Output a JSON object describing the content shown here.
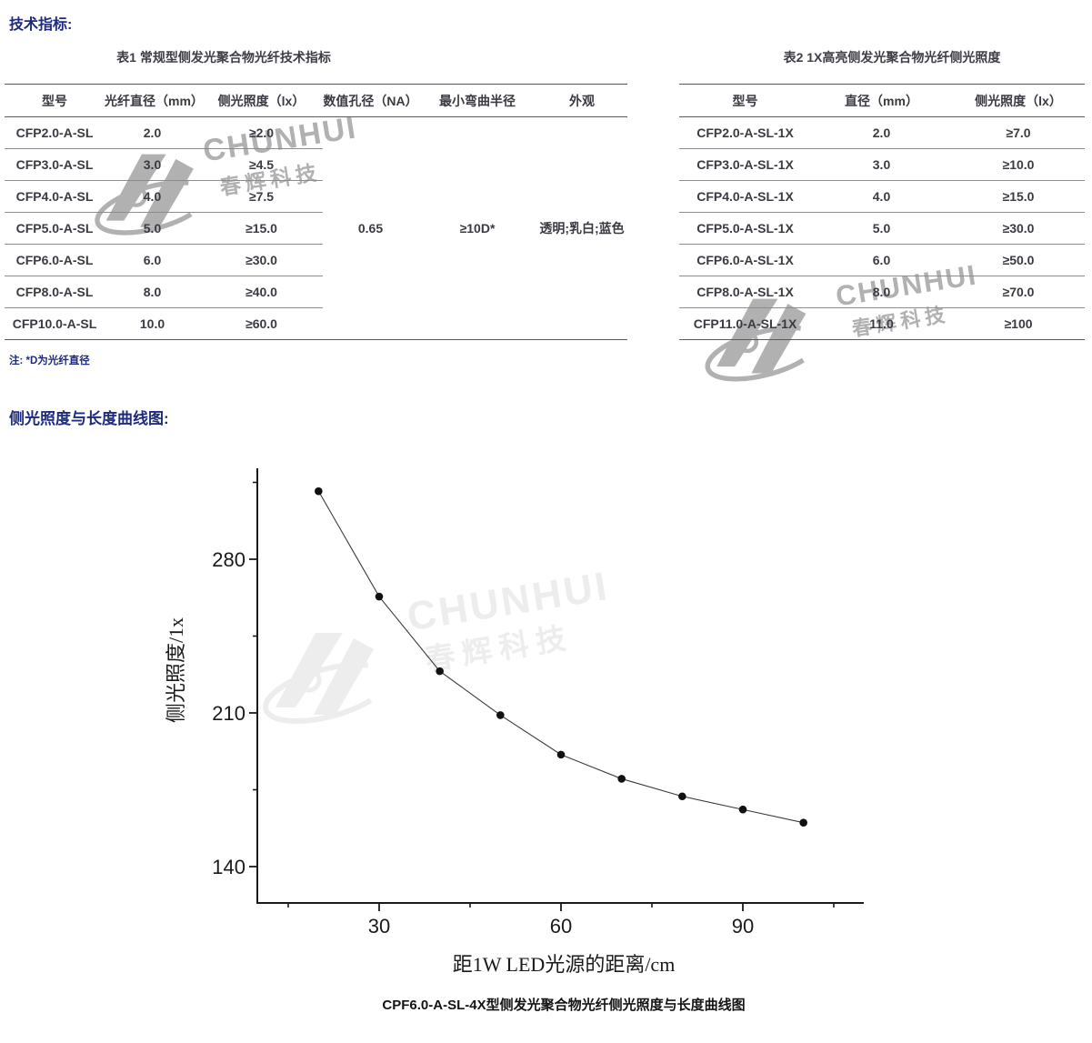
{
  "page": {
    "heading1": "技术指标:",
    "heading2": "侧光照度与长度曲线图:",
    "note": "注: *D为光纤直径",
    "caption": "CPF6.0-A-SL-4X型侧发光聚合物光纤侧光照度与长度曲线图",
    "accent_color": "#1c2b7d"
  },
  "table1": {
    "title": "表1 常规型侧发光聚合物光纤技术指标",
    "headers": [
      "型号",
      "光纤直径（mm）",
      "侧光照度（lx）",
      "数值孔径（NA）",
      "最小弯曲半径",
      "外观"
    ],
    "rows": [
      [
        "CFP2.0-A-SL",
        "2.0",
        "≥2.0"
      ],
      [
        "CFP3.0-A-SL",
        "3.0",
        "≥4.5"
      ],
      [
        "CFP4.0-A-SL",
        "4.0",
        "≥7.5"
      ],
      [
        "CFP5.0-A-SL",
        "5.0",
        "≥15.0"
      ],
      [
        "CFP6.0-A-SL",
        "6.0",
        "≥30.0"
      ],
      [
        "CFP8.0-A-SL",
        "8.0",
        "≥40.0"
      ],
      [
        "CFP10.0-A-SL",
        "10.0",
        "≥60.0"
      ]
    ],
    "merged": {
      "na": "0.65",
      "min_bend_radius": "≥10D*",
      "appearance": "透明;乳白;蓝色"
    }
  },
  "table2": {
    "title": "表2 1X高亮侧发光聚合物光纤侧光照度",
    "headers": [
      "型号",
      "直径（mm）",
      "侧光照度（lx）"
    ],
    "rows": [
      [
        "CFP2.0-A-SL-1X",
        "2.0",
        "≥7.0"
      ],
      [
        "CFP3.0-A-SL-1X",
        "3.0",
        "≥10.0"
      ],
      [
        "CFP4.0-A-SL-1X",
        "4.0",
        "≥15.0"
      ],
      [
        "CFP5.0-A-SL-1X",
        "5.0",
        "≥30.0"
      ],
      [
        "CFP6.0-A-SL-1X",
        "6.0",
        "≥50.0"
      ],
      [
        "CFP8.0-A-SL-1X",
        "8.0",
        "≥70.0"
      ],
      [
        "CFP11.0-A-SL-1X",
        "11.0",
        "≥100"
      ]
    ]
  },
  "chart_data": {
    "type": "line",
    "x": [
      20,
      30,
      40,
      50,
      60,
      70,
      80,
      90,
      100
    ],
    "y": [
      311,
      263,
      229,
      209,
      191,
      180,
      172,
      166,
      160
    ],
    "xlabel": "距1W LED光源的距离/cm",
    "ylabel": "侧光照度/1x",
    "x_major_ticks": [
      30,
      60,
      90
    ],
    "x_minor_ticks": [
      15,
      45,
      75,
      105
    ],
    "y_major_ticks": [
      140,
      210,
      280
    ],
    "y_minor_ticks": [
      175,
      245,
      315
    ],
    "xlim": [
      10,
      110
    ],
    "ylim": [
      123,
      322
    ],
    "grid": false,
    "legend": null,
    "marker": "circle",
    "line_color": "#3a3a3a",
    "marker_color": "#111111"
  },
  "watermark": {
    "brand": "CHUNHUI",
    "brand_cn": "春辉科技"
  }
}
